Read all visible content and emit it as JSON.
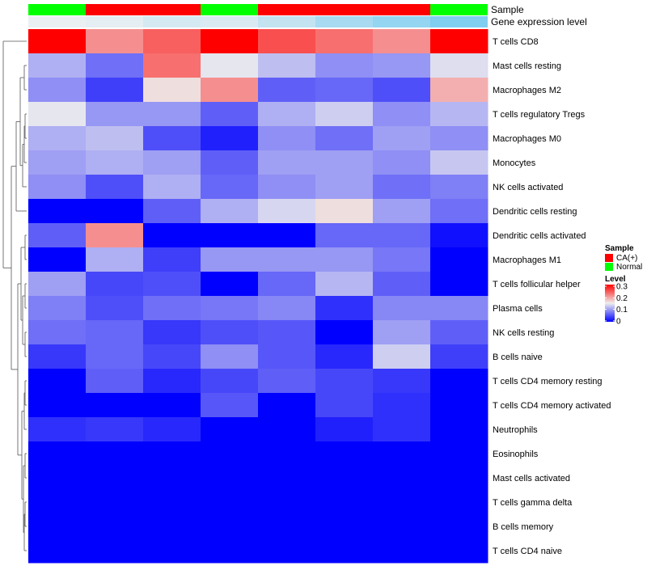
{
  "chart_data": {
    "type": "heatmap",
    "annotation_tracks": [
      {
        "name": "Sample",
        "values": [
          "Normal",
          "CA(+)",
          "CA(+)",
          "Normal",
          "CA(+)",
          "CA(+)",
          "CA(+)",
          "Normal"
        ]
      },
      {
        "name": "Gene expression level",
        "values": [
          0.06,
          0.1,
          0.22,
          0.18,
          0.35,
          0.55,
          0.7,
          0.85
        ]
      }
    ],
    "rows": [
      "T cells CD8",
      "Mast cells resting",
      "Macrophages M2",
      "T cells regulatory  Tregs",
      "Macrophages M0",
      "Monocytes",
      "NK cells activated",
      "Dendritic cells resting",
      "Dendritic cells activated",
      "Macrophages M1",
      "T cells follicular helper",
      "Plasma cells",
      "NK cells resting",
      "B cells naive",
      "T cells CD4 memory resting",
      "T cells CD4 memory activated",
      "Neutrophils",
      "Eosinophils",
      "Mast cells activated",
      "T cells gamma delta",
      "B cells memory",
      "T cells CD4 naive"
    ],
    "values": [
      [
        0.3,
        0.21,
        0.24,
        0.3,
        0.25,
        0.23,
        0.21,
        0.3
      ],
      [
        0.11,
        0.07,
        0.23,
        0.145,
        0.12,
        0.09,
        0.095,
        0.14
      ],
      [
        0.09,
        0.04,
        0.16,
        0.21,
        0.06,
        0.065,
        0.05,
        0.19
      ],
      [
        0.145,
        0.095,
        0.095,
        0.06,
        0.11,
        0.13,
        0.09,
        0.115
      ],
      [
        0.11,
        0.12,
        0.05,
        0.02,
        0.09,
        0.07,
        0.1,
        0.09
      ],
      [
        0.1,
        0.11,
        0.1,
        0.06,
        0.1,
        0.1,
        0.09,
        0.125
      ],
      [
        0.09,
        0.05,
        0.11,
        0.065,
        0.09,
        0.1,
        0.07,
        0.08
      ],
      [
        0.0,
        0.0,
        0.06,
        0.11,
        0.135,
        0.16,
        0.1,
        0.07
      ],
      [
        0.06,
        0.21,
        0.0,
        0.0,
        0.0,
        0.065,
        0.065,
        0.01
      ],
      [
        0.0,
        0.11,
        0.04,
        0.095,
        0.095,
        0.095,
        0.075,
        0.0
      ],
      [
        0.1,
        0.045,
        0.05,
        0.0,
        0.065,
        0.115,
        0.06,
        0.0
      ],
      [
        0.08,
        0.05,
        0.07,
        0.075,
        0.085,
        0.03,
        0.085,
        0.085
      ],
      [
        0.07,
        0.065,
        0.035,
        0.05,
        0.055,
        0.0,
        0.1,
        0.06
      ],
      [
        0.035,
        0.065,
        0.045,
        0.09,
        0.055,
        0.025,
        0.13,
        0.04
      ],
      [
        0.0,
        0.06,
        0.025,
        0.045,
        0.06,
        0.045,
        0.035,
        0.0
      ],
      [
        0.0,
        0.0,
        0.0,
        0.055,
        0.0,
        0.045,
        0.03,
        0.0
      ],
      [
        0.03,
        0.035,
        0.025,
        0.0,
        0.0,
        0.02,
        0.03,
        0.0
      ],
      [
        0.0,
        0.0,
        0.0,
        0.0,
        0.0,
        0.0,
        0.0,
        0.0
      ],
      [
        0.0,
        0.0,
        0.0,
        0.0,
        0.0,
        0.0,
        0.0,
        0.0
      ],
      [
        0.0,
        0.0,
        0.0,
        0.0,
        0.0,
        0.0,
        0.0,
        0.0
      ],
      [
        0.0,
        0.0,
        0.0,
        0.0,
        0.0,
        0.0,
        0.0,
        0.0
      ],
      [
        0.0,
        0.0,
        0.0,
        0.0,
        0.0,
        0.0,
        0.0,
        0.0
      ]
    ],
    "color_scale": {
      "min": 0,
      "max": 0.3,
      "low": "#0000FF",
      "mid": "#EEEEEE",
      "high": "#FF0000",
      "mid_value": 0.15
    },
    "row_dendrogram": true,
    "legend": {
      "placement": "right",
      "sample_title": "Sample",
      "sample_entries": [
        {
          "label": "CA(+)",
          "color": "#FF0000"
        },
        {
          "label": "Normal",
          "color": "#00FF00"
        }
      ],
      "level_title": "Level",
      "level_ticks": [
        "0.3",
        "0.2",
        "0.1",
        "0"
      ]
    },
    "annotation_colors": {
      "Normal": "#00FF00",
      "CA(+)": "#FF0000",
      "gene_low": "#F2F2F2",
      "gene_high": "#6CC8F0"
    }
  }
}
